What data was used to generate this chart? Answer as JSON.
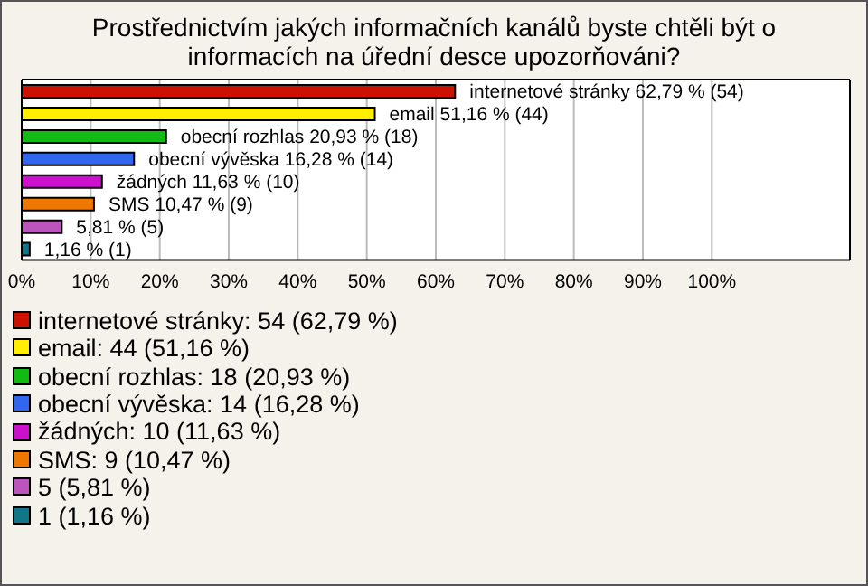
{
  "chart_data": {
    "type": "bar",
    "orientation": "horizontal",
    "stacked": true,
    "title": "Prostřednictvím jakých informačních kanálů byste chtěli být o informacích na úřední desce upozorňováni?",
    "categories": [
      null,
      null,
      null,
      null,
      null,
      null,
      null,
      null
    ],
    "series": [
      {
        "name": "internetové stránky: 54 (62,79 %)",
        "color": "#cc1100",
        "values": [
          62.79,
          null,
          null,
          null,
          null,
          null,
          null,
          null
        ],
        "value_labels": [
          "internetové stránky 62,79 % (54)",
          null,
          null,
          null,
          null,
          null,
          null,
          null
        ]
      },
      {
        "name": "email: 44 (51,16 %)",
        "color": "#ffee00",
        "values": [
          null,
          51.16,
          null,
          null,
          null,
          null,
          null,
          null
        ],
        "value_labels": [
          null,
          "email 51,16 % (44)",
          null,
          null,
          null,
          null,
          null,
          null
        ]
      },
      {
        "name": "obecní rozhlas: 18 (20,93 %)",
        "color": "#11bb11",
        "values": [
          null,
          null,
          20.93,
          null,
          null,
          null,
          null,
          null
        ],
        "value_labels": [
          null,
          null,
          "obecní rozhlas 20,93 % (18)",
          null,
          null,
          null,
          null,
          null
        ]
      },
      {
        "name": "obecní vývěska: 14 (16,28 %)",
        "color": "#3366ee",
        "values": [
          null,
          null,
          null,
          16.28,
          null,
          null,
          null,
          null
        ],
        "value_labels": [
          null,
          null,
          null,
          "obecní vývěska 16,28 % (14)",
          null,
          null,
          null,
          null
        ]
      },
      {
        "name": "žádných: 10 (11,63 %)",
        "color": "#cc11cc",
        "values": [
          null,
          null,
          null,
          null,
          11.63,
          null,
          null,
          null
        ],
        "value_labels": [
          null,
          null,
          null,
          null,
          "žádných 11,63 % (10)",
          null,
          null,
          null
        ]
      },
      {
        "name": "SMS: 9 (10,47 %)",
        "color": "#ee7700",
        "values": [
          null,
          null,
          null,
          null,
          null,
          10.47,
          null,
          null
        ],
        "value_labels": [
          null,
          null,
          null,
          null,
          null,
          "SMS 10,47 % (9)",
          null,
          null
        ]
      },
      {
        "name": "5 (5,81 %)",
        "color": "#bb55bb",
        "values": [
          null,
          null,
          null,
          null,
          null,
          null,
          5.81,
          null
        ],
        "value_labels": [
          null,
          null,
          null,
          null,
          null,
          null,
          "5,81 % (5)",
          null
        ]
      },
      {
        "name": "1 (1,16 %)",
        "color": "#117788",
        "values": [
          null,
          null,
          null,
          null,
          null,
          null,
          null,
          1.16
        ],
        "value_labels": [
          null,
          null,
          null,
          null,
          null,
          null,
          null,
          "1,16 % (1)"
        ]
      }
    ],
    "xlim": [
      0,
      120
    ],
    "xticks": [
      {
        "value": 0,
        "label": "0%"
      },
      {
        "value": 10,
        "label": "10%"
      },
      {
        "value": 20,
        "label": "20%"
      },
      {
        "value": 30,
        "label": "30%"
      },
      {
        "value": 40,
        "label": "40%"
      },
      {
        "value": 50,
        "label": "50%"
      },
      {
        "value": 60,
        "label": "60%"
      },
      {
        "value": 70,
        "label": "70%"
      },
      {
        "value": 80,
        "label": "80%"
      },
      {
        "value": 90,
        "label": "90%"
      },
      {
        "value": 100,
        "label": "100%"
      }
    ],
    "grid": "x",
    "legend": "bottom"
  }
}
